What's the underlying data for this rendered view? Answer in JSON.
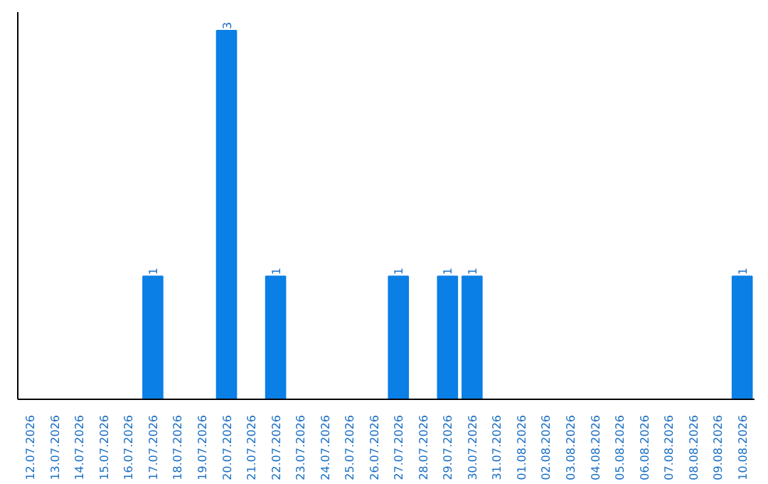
{
  "chart_data": {
    "type": "bar",
    "categories": [
      "12.07.2026",
      "13.07.2026",
      "14.07.2026",
      "15.07.2026",
      "16.07.2026",
      "17.07.2026",
      "18.07.2026",
      "19.07.2026",
      "20.07.2026",
      "21.07.2026",
      "22.07.2026",
      "23.07.2026",
      "24.07.2026",
      "25.07.2026",
      "26.07.2026",
      "27.07.2026",
      "28.07.2026",
      "29.07.2026",
      "30.07.2026",
      "31.07.2026",
      "01.08.2026",
      "02.08.2026",
      "03.08.2026",
      "04.08.2026",
      "05.08.2026",
      "06.08.2026",
      "07.08.2026",
      "08.08.2026",
      "09.08.2026",
      "10.08.2026"
    ],
    "values": [
      0,
      0,
      0,
      0,
      0,
      1,
      0,
      0,
      3,
      0,
      1,
      0,
      0,
      0,
      0,
      1,
      0,
      1,
      1,
      0,
      0,
      0,
      0,
      0,
      0,
      0,
      0,
      0,
      0,
      1
    ],
    "value_labels": [
      null,
      null,
      null,
      null,
      null,
      "1",
      null,
      null,
      "3",
      null,
      "1",
      null,
      null,
      null,
      null,
      "1",
      null,
      "1",
      "1",
      null,
      null,
      null,
      null,
      null,
      null,
      null,
      null,
      null,
      null,
      "1"
    ],
    "color": "#0a7fe6"
  }
}
